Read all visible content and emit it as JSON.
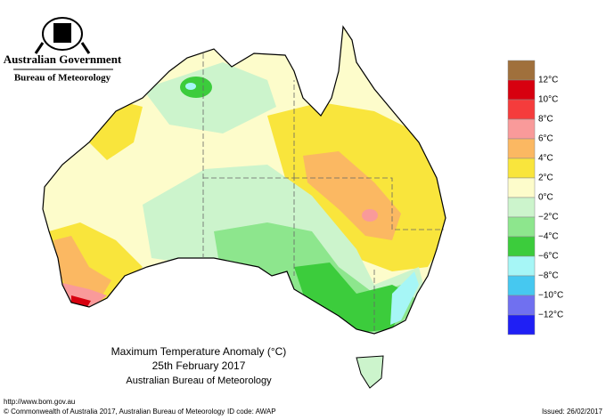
{
  "header": {
    "agency": "Australian Government",
    "bureau": "Bureau of Meteorology"
  },
  "map": {
    "title": "Maximum Temperature Anomaly (°C)",
    "date": "25th February 2017",
    "source": "Australian Bureau of Meteorology"
  },
  "legend": {
    "colors": [
      "#a0703c",
      "#d7000f",
      "#f53c3c",
      "#f99a9a",
      "#fbb862",
      "#f9e53c",
      "#fdfccb",
      "#ccf4cc",
      "#8de68d",
      "#3ccc3c",
      "#a6f6f6",
      "#46c8f0",
      "#7070f0",
      "#1f1ff5"
    ],
    "labels": [
      "12°C",
      "10°C",
      "8°C",
      "6°C",
      "4°C",
      "2°C",
      "0°C",
      "−2°C",
      "−4°C",
      "−6°C",
      "−8°C",
      "−10°C",
      "−12°C"
    ]
  },
  "footer": {
    "url": "http://www.bom.gov.au",
    "copyright": "© Commonwealth of Australia 2017, Australian Bureau of Meteorology",
    "id_code": "ID code: AWAP",
    "issued": "Issued: 26/02/2017"
  }
}
